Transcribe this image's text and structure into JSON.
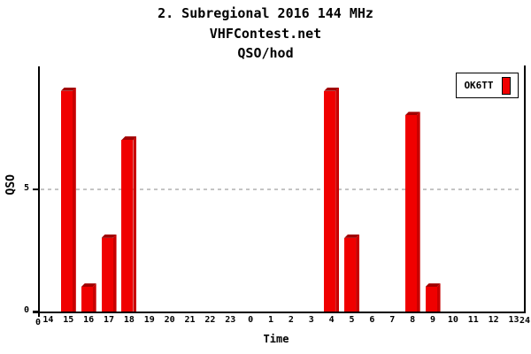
{
  "header": {
    "title": "2. Subregional 2016 144 MHz",
    "subtitle": "VHFContest.net",
    "metric": "QSO/hod"
  },
  "legend": {
    "entries": [
      {
        "label": "OK6TT",
        "color": "#f00000"
      }
    ],
    "position": "top-right"
  },
  "chart_data": {
    "type": "bar",
    "title": "QSO/hod",
    "xlabel": "Time",
    "ylabel": "QSO",
    "categories": [
      "14",
      "15",
      "16",
      "17",
      "18",
      "19",
      "20",
      "21",
      "22",
      "23",
      "0",
      "1",
      "2",
      "3",
      "4",
      "5",
      "6",
      "7",
      "8",
      "9",
      "10",
      "11",
      "12",
      "13"
    ],
    "series": [
      {
        "name": "OK6TT",
        "values": [
          0,
          9,
          1,
          3,
          7,
          0,
          0,
          0,
          0,
          0,
          0,
          0,
          0,
          0,
          9,
          3,
          0,
          0,
          8,
          1,
          0,
          0,
          0,
          0
        ]
      }
    ],
    "ylim": [
      0,
      10
    ],
    "yticks": [
      0,
      5
    ],
    "x_edge_labels": [
      "0",
      "24"
    ],
    "grid": "dashed horizontal gridline at y=5",
    "legend_position": "top-right",
    "colors": {
      "bar_front": "#f00000",
      "bar_side": "#c80000",
      "bar_top": "#a00000",
      "grid_line": "#c4c4c4",
      "axis": "#000000",
      "background": "#ffffff"
    }
  }
}
